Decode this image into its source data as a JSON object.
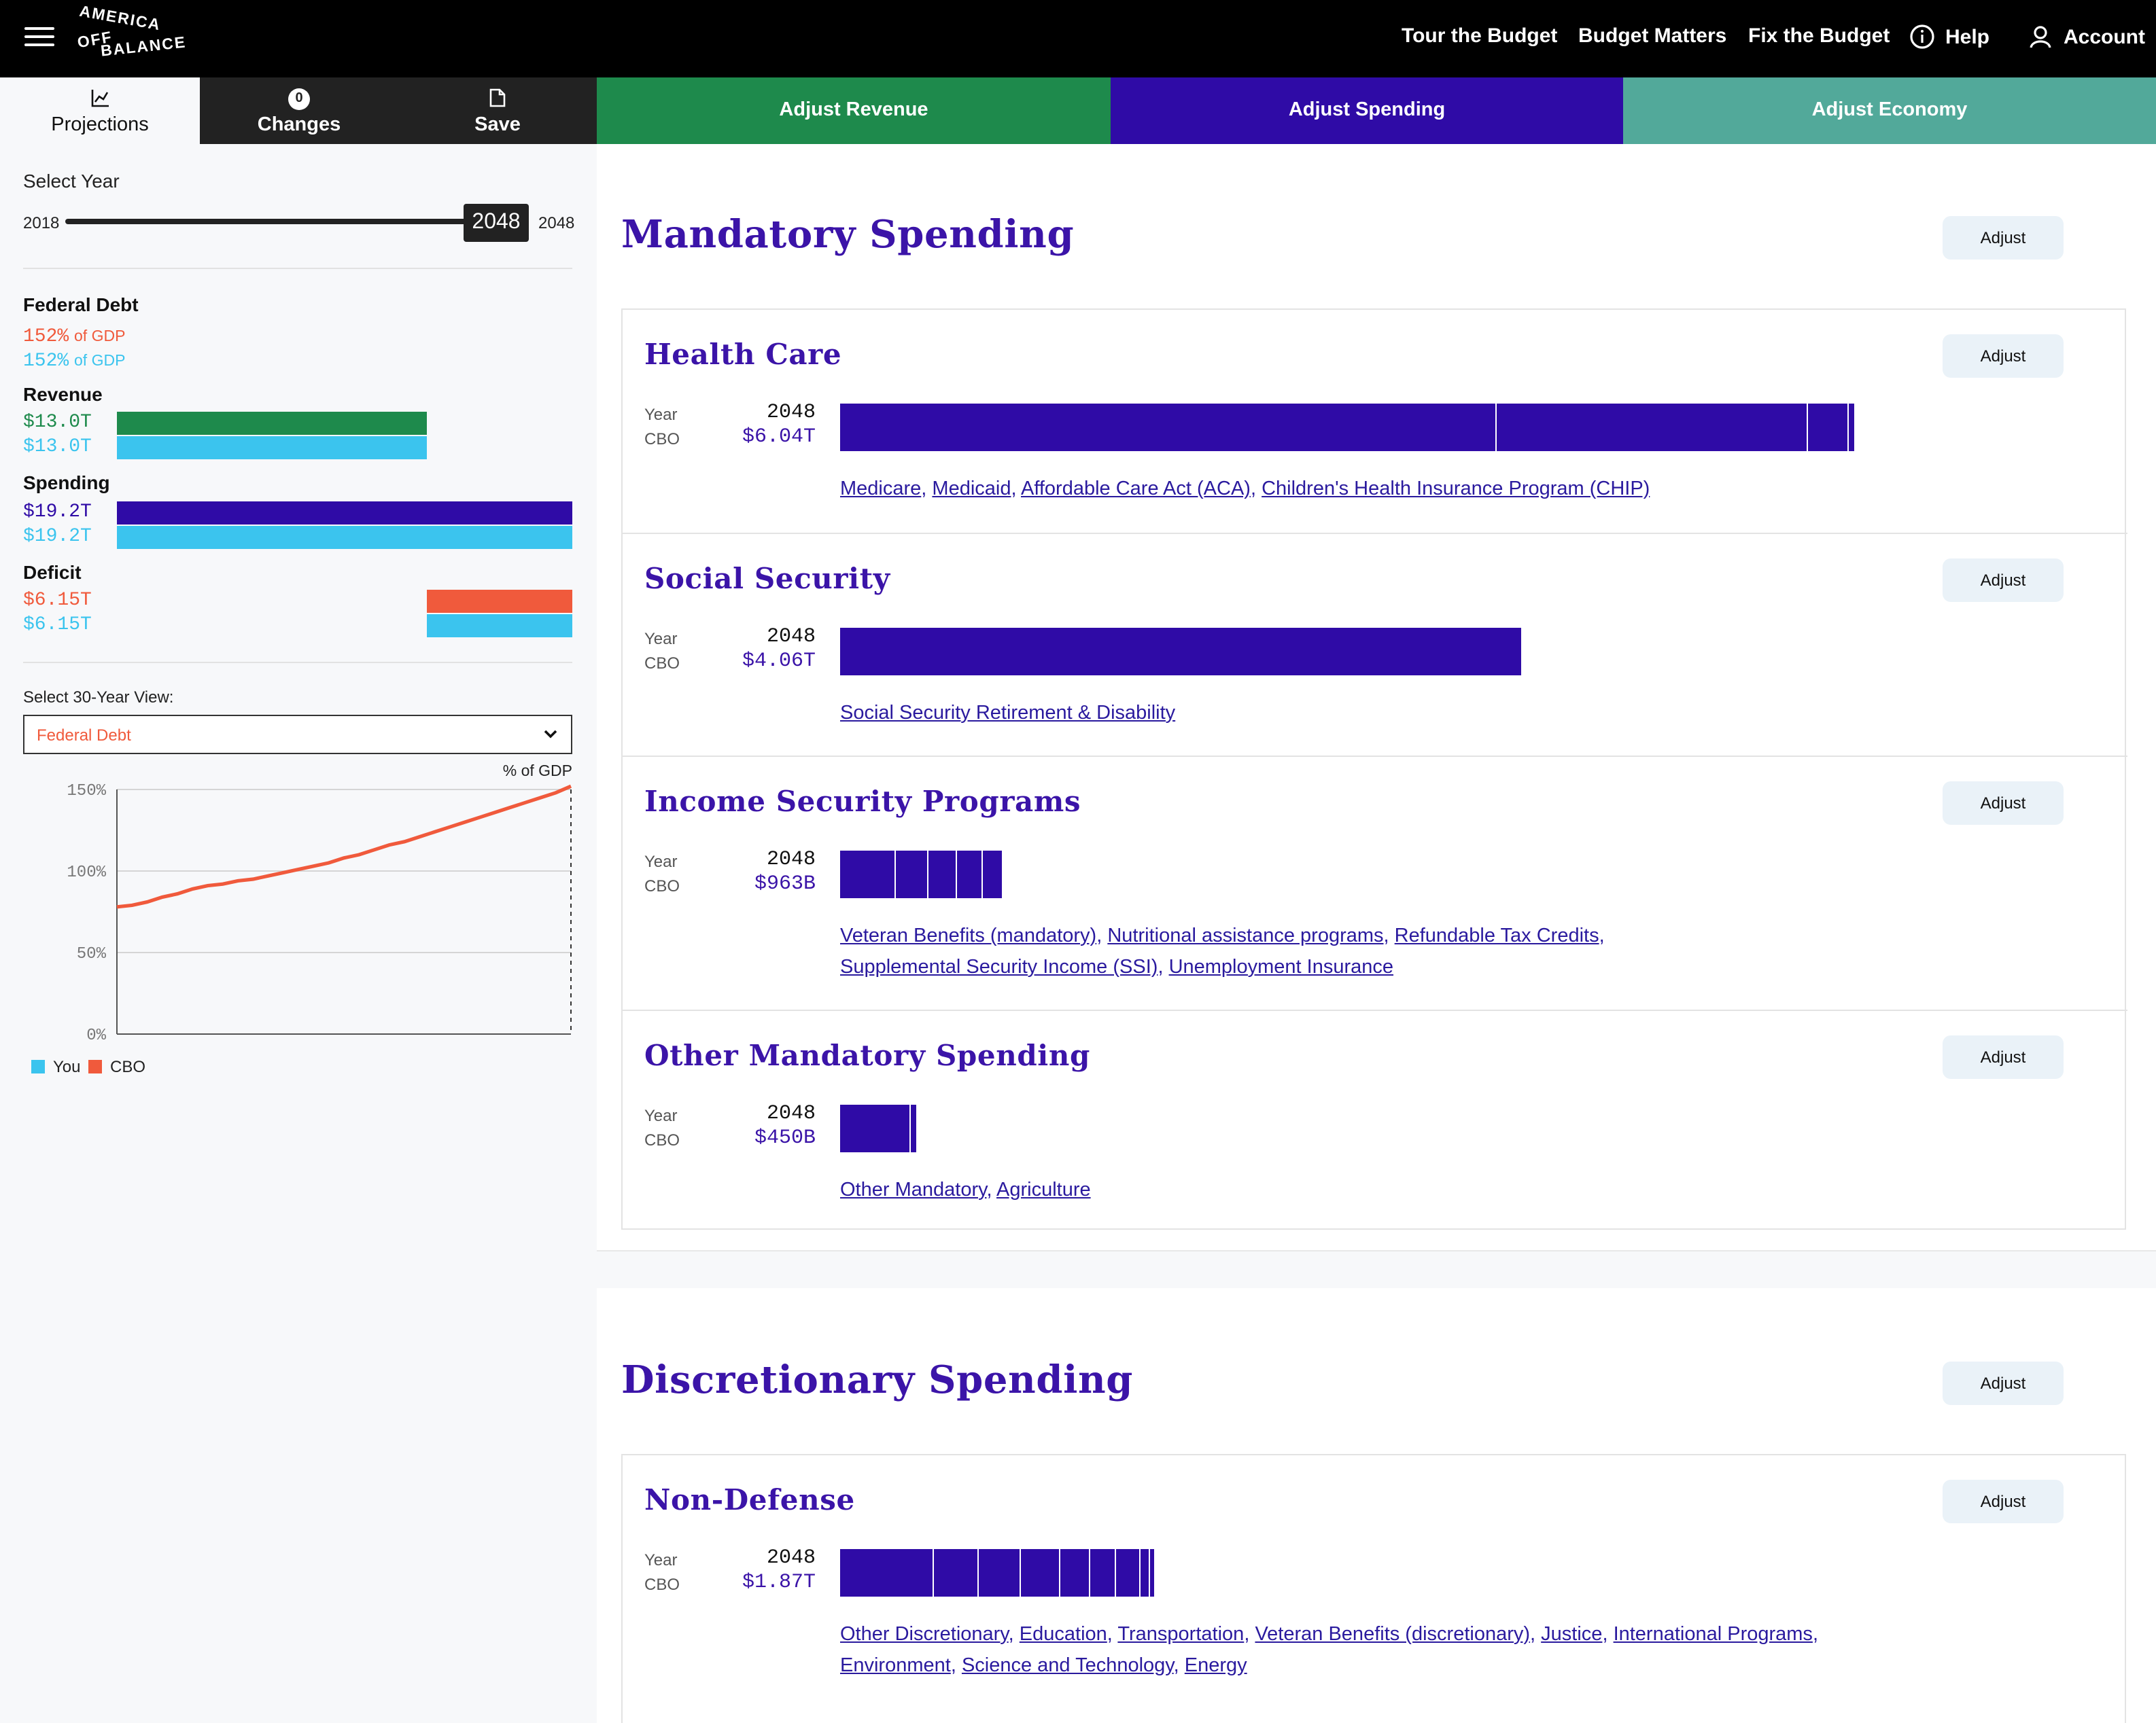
{
  "brand": {
    "logo_line1": "AMERICA",
    "logo_line2": "OFF",
    "logo_line3": "BALANCE"
  },
  "nav": {
    "tour": "Tour the Budget",
    "matters": "Budget Matters",
    "fix": "Fix the Budget",
    "help": "Help",
    "account": "Account"
  },
  "panel_tabs": {
    "projections": "Projections",
    "changes": "Changes",
    "changes_count": "0",
    "save": "Save"
  },
  "main_tabs": {
    "revenue": "Adjust Revenue",
    "spending": "Adjust Spending",
    "economy": "Adjust Economy"
  },
  "year_selector": {
    "label": "Select Year",
    "min": "2018",
    "max": "2048",
    "value": "2048",
    "position": 1.0
  },
  "summary": {
    "debt_title": "Federal Debt",
    "debt_cbo_pct": "152%",
    "debt_you_pct": "152%",
    "of_gdp": "of GDP",
    "revenue_title": "Revenue",
    "revenue_cbo": "$13.0T",
    "revenue_you": "$13.0T",
    "spending_title": "Spending",
    "spending_cbo": "$19.2T",
    "spending_you": "$19.2T",
    "deficit_title": "Deficit",
    "deficit_cbo": "$6.15T",
    "deficit_you": "$6.15T"
  },
  "view_select": {
    "label": "Select 30-Year View:",
    "value": "Federal Debt"
  },
  "chart_data": {
    "type": "line",
    "title": "",
    "unit_label": "% of GDP",
    "yticks": [
      "150%",
      "100%",
      "50%",
      "0%"
    ],
    "ylim": [
      0,
      150
    ],
    "xlim": [
      2018,
      2048
    ],
    "series": [
      {
        "name": "CBO",
        "color": "#f05a3c",
        "x": [
          2018,
          2019,
          2020,
          2021,
          2022,
          2023,
          2024,
          2025,
          2026,
          2027,
          2028,
          2029,
          2030,
          2031,
          2032,
          2033,
          2034,
          2035,
          2036,
          2037,
          2038,
          2039,
          2040,
          2041,
          2042,
          2043,
          2044,
          2045,
          2046,
          2047,
          2048
        ],
        "values": [
          78,
          79,
          81,
          84,
          86,
          89,
          91,
          92,
          94,
          95,
          97,
          99,
          101,
          103,
          105,
          108,
          110,
          113,
          116,
          118,
          121,
          124,
          127,
          130,
          133,
          136,
          139,
          142,
          145,
          148,
          152
        ]
      }
    ],
    "legend": [
      {
        "name": "You",
        "color": "#3bc4ee"
      },
      {
        "name": "CBO",
        "color": "#f05a3c"
      }
    ],
    "legend_position": "bottom-left"
  },
  "colors": {
    "revenue": "#1e8a4c",
    "spending": "#2f0ba6",
    "economy": "#52a99a",
    "you": "#3bc4ee",
    "cbo_red": "#f05a3c"
  },
  "mandatory": {
    "title": "Mandatory Spending",
    "adjust": "Adjust",
    "items": [
      {
        "title": "Health Care",
        "year_label": "Year",
        "cbo_label": "CBO",
        "year": "2048",
        "amount": "$6.04T",
        "links": [
          "Medicare",
          "Medicaid",
          "Affordable Care Act (ACA)",
          "Children's Health Insurance Program (CHIP)"
        ]
      },
      {
        "title": "Social Security",
        "year_label": "Year",
        "cbo_label": "CBO",
        "year": "2048",
        "amount": "$4.06T",
        "links": [
          "Social Security Retirement & Disability"
        ]
      },
      {
        "title": "Income Security Programs",
        "year_label": "Year",
        "cbo_label": "CBO",
        "year": "2048",
        "amount": "$963B",
        "links": [
          "Veteran Benefits (mandatory)",
          "Nutritional assistance programs",
          "Refundable Tax Credits",
          "Supplemental Security Income (SSI)",
          "Unemployment Insurance"
        ]
      },
      {
        "title": "Other Mandatory Spending",
        "year_label": "Year",
        "cbo_label": "CBO",
        "year": "2048",
        "amount": "$450B",
        "links": [
          "Other Mandatory",
          "Agriculture"
        ]
      }
    ]
  },
  "discretionary": {
    "title": "Discretionary Spending",
    "adjust": "Adjust",
    "items": [
      {
        "title": "Non-Defense",
        "year_label": "Year",
        "cbo_label": "CBO",
        "year": "2048",
        "amount": "$1.87T",
        "links": [
          "Other Discretionary",
          "Education",
          "Transportation",
          "Veteran Benefits (discretionary)",
          "Justice",
          "International Programs",
          "Environment",
          "Science and Technology",
          "Energy"
        ]
      }
    ]
  }
}
